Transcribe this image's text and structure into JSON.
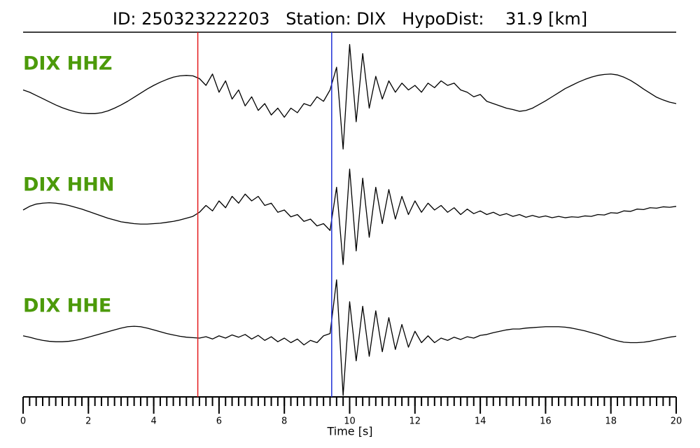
{
  "chart_data": {
    "type": "line",
    "title": "ID: 250323222203   Station: DIX   HypoDist:    31.9 [km]",
    "xlabel": "Time [s]",
    "xlim": [
      0,
      20
    ],
    "xticks": [
      0,
      2,
      4,
      6,
      8,
      10,
      12,
      14,
      16,
      18,
      20
    ],
    "xticks_minor": [
      0,
      0.2,
      0.4,
      0.6,
      0.8,
      1,
      1.2,
      1.4,
      1.6,
      1.8,
      2,
      2.2,
      2.4,
      2.6,
      2.8,
      3,
      3.2,
      3.4,
      3.6,
      3.8,
      4,
      4.2,
      4.4,
      4.6,
      4.8,
      5,
      5.2,
      5.4,
      5.6,
      5.8,
      6,
      6.2,
      6.4,
      6.6,
      6.8,
      7,
      7.2,
      7.4,
      7.6,
      7.8,
      8,
      8.2,
      8.4,
      8.6,
      8.8,
      9,
      9.2,
      9.4,
      9.6,
      9.8,
      10,
      10.2,
      10.4,
      10.6,
      10.8,
      11,
      11.2,
      11.4,
      11.6,
      11.8,
      12,
      12.2,
      12.4,
      12.6,
      12.8,
      13,
      13.2,
      13.4,
      13.6,
      13.8,
      14,
      14.2,
      14.4,
      14.6,
      14.8,
      15,
      15.2,
      15.4,
      15.6,
      15.8,
      16,
      16.2,
      16.4,
      16.6,
      16.8,
      17,
      17.2,
      17.4,
      17.6,
      17.8,
      18,
      18.2,
      18.4,
      18.6,
      18.8,
      19,
      19.2,
      19.4,
      19.6,
      19.8,
      20
    ],
    "ylim": [
      -1.3,
      1.3
    ],
    "label_color": "#4c9a0a",
    "picks": [
      {
        "x": 5.35,
        "color": "#e41a1c"
      },
      {
        "x": 9.45,
        "color": "#1f2fd6"
      }
    ],
    "x": [
      0,
      0.2,
      0.4,
      0.6,
      0.8,
      1,
      1.2,
      1.4,
      1.6,
      1.8,
      2,
      2.2,
      2.4,
      2.6,
      2.8,
      3,
      3.2,
      3.4,
      3.6,
      3.8,
      4,
      4.2,
      4.4,
      4.6,
      4.8,
      5,
      5.2,
      5.4,
      5.6,
      5.8,
      6,
      6.2,
      6.4,
      6.6,
      6.8,
      7,
      7.2,
      7.4,
      7.6,
      7.8,
      8,
      8.2,
      8.4,
      8.6,
      8.8,
      9,
      9.2,
      9.4,
      9.6,
      9.8,
      10,
      10.2,
      10.4,
      10.6,
      10.8,
      11,
      11.2,
      11.4,
      11.6,
      11.8,
      12,
      12.2,
      12.4,
      12.6,
      12.8,
      13,
      13.2,
      13.4,
      13.6,
      13.8,
      14,
      14.2,
      14.4,
      14.6,
      14.8,
      15,
      15.2,
      15.4,
      15.6,
      15.8,
      16,
      16.2,
      16.4,
      16.6,
      16.8,
      17,
      17.2,
      17.4,
      17.6,
      17.8,
      18,
      18.2,
      18.4,
      18.6,
      18.8,
      19,
      19.2,
      19.4,
      19.6,
      19.8,
      20
    ],
    "series": [
      {
        "name": "DIX HHZ",
        "color": "#000000",
        "values": [
          0.1,
          0.05,
          -0.02,
          -0.09,
          -0.16,
          -0.23,
          -0.29,
          -0.34,
          -0.38,
          -0.41,
          -0.42,
          -0.42,
          -0.4,
          -0.36,
          -0.3,
          -0.23,
          -0.15,
          -0.06,
          0.03,
          0.12,
          0.2,
          0.27,
          0.33,
          0.38,
          0.41,
          0.42,
          0.41,
          0.35,
          0.2,
          0.45,
          0.05,
          0.3,
          -0.1,
          0.1,
          -0.25,
          -0.05,
          -0.35,
          -0.2,
          -0.45,
          -0.3,
          -0.5,
          -0.3,
          -0.4,
          -0.2,
          -0.25,
          -0.05,
          -0.15,
          0.1,
          0.6,
          -1.2,
          1.1,
          -0.6,
          0.9,
          -0.3,
          0.4,
          -0.1,
          0.3,
          0.05,
          0.25,
          0.1,
          0.2,
          0.05,
          0.25,
          0.15,
          0.3,
          0.2,
          0.25,
          0.1,
          0.05,
          -0.05,
          0,
          -0.15,
          -0.2,
          -0.25,
          -0.3,
          -0.33,
          -0.37,
          -0.35,
          -0.3,
          -0.22,
          -0.14,
          -0.05,
          0.04,
          0.13,
          0.2,
          0.27,
          0.33,
          0.38,
          0.42,
          0.44,
          0.45,
          0.43,
          0.38,
          0.31,
          0.22,
          0.12,
          0.03,
          -0.06,
          -0.12,
          -0.17,
          -0.2
        ]
      },
      {
        "name": "DIX HHN",
        "color": "#000000",
        "values": [
          0,
          0.08,
          0.13,
          0.15,
          0.16,
          0.15,
          0.13,
          0.1,
          0.06,
          0.02,
          -0.03,
          -0.08,
          -0.13,
          -0.18,
          -0.22,
          -0.26,
          -0.28,
          -0.3,
          -0.31,
          -0.31,
          -0.3,
          -0.29,
          -0.27,
          -0.25,
          -0.22,
          -0.18,
          -0.14,
          -0.05,
          0.1,
          -0.02,
          0.2,
          0.05,
          0.3,
          0.15,
          0.35,
          0.2,
          0.3,
          0.1,
          0.15,
          -0.05,
          0,
          -0.15,
          -0.1,
          -0.25,
          -0.2,
          -0.35,
          -0.3,
          -0.45,
          0.5,
          -1.2,
          0.9,
          -0.9,
          0.7,
          -0.6,
          0.5,
          -0.3,
          0.45,
          -0.2,
          0.3,
          -0.1,
          0.2,
          -0.05,
          0.15,
          0,
          0.1,
          -0.05,
          0.05,
          -0.1,
          0.02,
          -0.08,
          -0.02,
          -0.1,
          -0.05,
          -0.12,
          -0.08,
          -0.14,
          -0.1,
          -0.16,
          -0.12,
          -0.16,
          -0.13,
          -0.17,
          -0.14,
          -0.17,
          -0.15,
          -0.16,
          -0.13,
          -0.14,
          -0.1,
          -0.11,
          -0.06,
          -0.07,
          -0.02,
          -0.03,
          0.02,
          0.01,
          0.05,
          0.04,
          0.07,
          0.06,
          0.08
        ]
      },
      {
        "name": "DIX HHE",
        "color": "#000000",
        "values": [
          0.05,
          0.02,
          -0.02,
          -0.05,
          -0.07,
          -0.08,
          -0.08,
          -0.07,
          -0.05,
          -0.02,
          0.02,
          0.06,
          0.1,
          0.14,
          0.18,
          0.22,
          0.25,
          0.26,
          0.25,
          0.22,
          0.18,
          0.14,
          0.1,
          0.07,
          0.04,
          0.02,
          0.01,
          0,
          0.03,
          -0.02,
          0.05,
          0,
          0.07,
          0.02,
          0.08,
          -0.02,
          0.06,
          -0.05,
          0.03,
          -0.08,
          0,
          -0.1,
          -0.02,
          -0.15,
          -0.05,
          -0.1,
          0.05,
          0.1,
          1.28,
          -1.26,
          0.8,
          -0.5,
          0.7,
          -0.4,
          0.6,
          -0.3,
          0.45,
          -0.25,
          0.3,
          -0.2,
          0.15,
          -0.1,
          0.05,
          -0.1,
          0,
          -0.05,
          0.02,
          -0.03,
          0.03,
          0,
          0.06,
          0.08,
          0.12,
          0.15,
          0.18,
          0.2,
          0.2,
          0.22,
          0.23,
          0.24,
          0.25,
          0.25,
          0.25,
          0.24,
          0.22,
          0.19,
          0.16,
          0.12,
          0.08,
          0.03,
          -0.02,
          -0.06,
          -0.09,
          -0.1,
          -0.1,
          -0.09,
          -0.07,
          -0.04,
          -0.01,
          0.02,
          0.04
        ]
      }
    ]
  }
}
